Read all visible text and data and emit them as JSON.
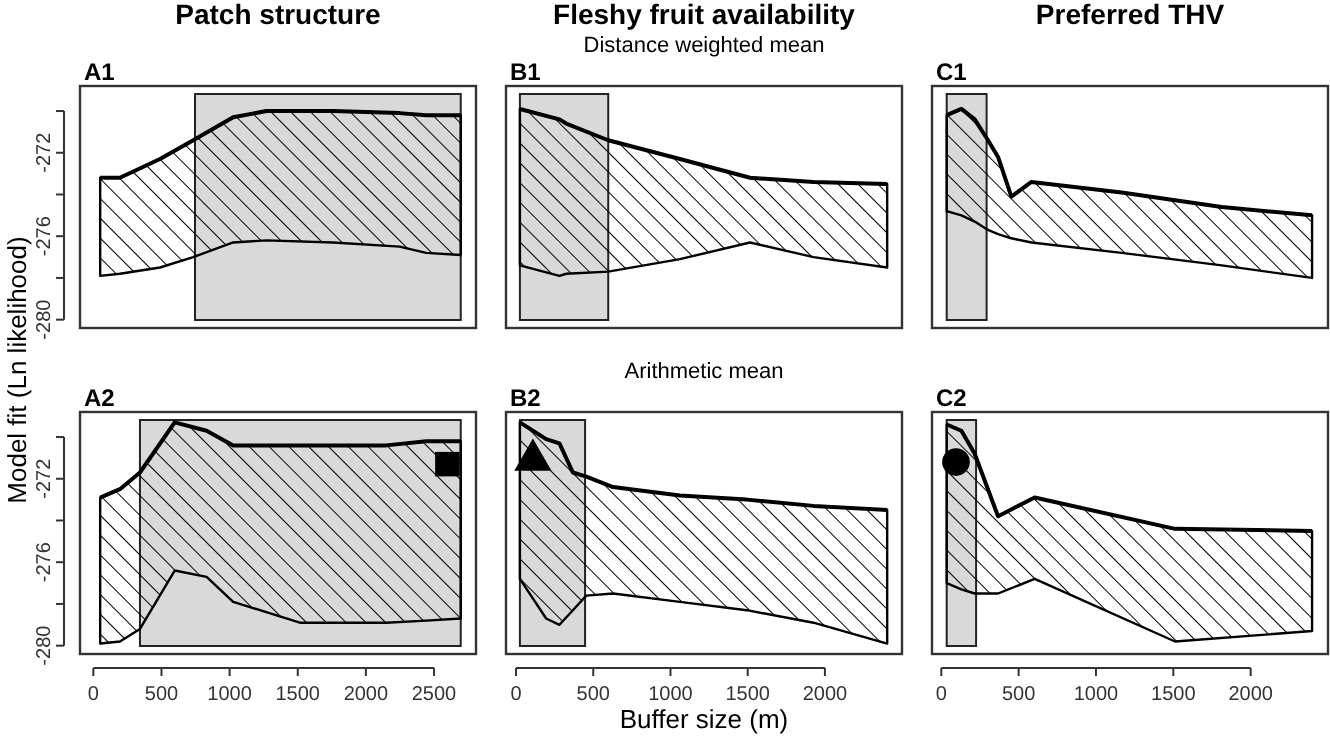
{
  "chart_data": [
    {
      "type": "line",
      "title": "Patch structure",
      "ylabel": "Model fit (Ln likelihood)",
      "annotations": [
        "A1"
      ],
      "xlim": [
        -98,
        2808
      ],
      "ylim": [
        -280.4,
        -268.8
      ],
      "yticks": [
        {
          "value": -270,
          "label": null
        },
        -272,
        {
          "value": -274,
          "label": null
        },
        -276,
        {
          "value": -278,
          "label": null
        },
        -280
      ],
      "tick_labels": "y",
      "bands": [
        {
          "axis": "x",
          "from": 746,
          "to": 2696,
          "color": "#d9d9d9"
        }
      ],
      "series": [
        {
          "color": "#000000",
          "x": [
            50,
            195,
            489,
            733,
            1026,
            1270,
            1759,
            2247,
            2442,
            2696
          ],
          "values": [
            -273.2,
            -273.2,
            -272.3,
            -271.4,
            -270.3,
            -270.0,
            -270.0,
            -270.1,
            -270.2,
            -270.2
          ],
          "upper": [
            -273.2,
            -273.2,
            -272.3,
            -271.4,
            -270.3,
            -270.0,
            -270.0,
            -270.1,
            -270.2,
            -270.2
          ],
          "lower": [
            -277.9,
            -277.8,
            -277.5,
            -277.0,
            -276.3,
            -276.2,
            -276.3,
            -276.5,
            -276.8,
            -276.9
          ]
        }
      ]
    },
    {
      "type": "line",
      "title": "Fleshy fruit availability",
      "subtitle": "Distance weighted mean",
      "annotations": [
        "B1"
      ],
      "xlim": [
        -65,
        2499
      ],
      "ylim": [
        -280.4,
        -268.8
      ],
      "tick_labels": false,
      "bands": [
        {
          "axis": "x",
          "from": 25,
          "to": 597,
          "color": "#d9d9d9"
        }
      ],
      "series": [
        {
          "color": "#000000",
          "x": [
            25,
            281,
            325,
            597,
            1061,
            1515,
            1926,
            2403
          ],
          "values": [
            -269.9,
            -270.4,
            -270.6,
            -271.4,
            -272.3,
            -273.2,
            -273.4,
            -273.5
          ],
          "upper": [
            -269.9,
            -270.4,
            -270.6,
            -271.4,
            -272.3,
            -273.2,
            -273.4,
            -273.5
          ],
          "lower": [
            -277.4,
            -277.9,
            -277.8,
            -277.7,
            -277.1,
            -276.3,
            -277.0,
            -277.5
          ]
        }
      ]
    },
    {
      "type": "line",
      "title": "Preferred THV",
      "annotations": [
        "C1"
      ],
      "xlim": [
        -60,
        2500
      ],
      "ylim": [
        -280.4,
        -268.8
      ],
      "tick_labels": false,
      "bands": [
        {
          "axis": "x",
          "from": 35,
          "to": 293,
          "color": "#d9d9d9"
        }
      ],
      "series": [
        {
          "color": "#000000",
          "x": [
            35,
            130,
            216,
            302,
            367,
            453,
            583,
            1166,
            1813,
            2397
          ],
          "values": [
            -270.2,
            -269.9,
            -270.4,
            -271.4,
            -272.2,
            -274.1,
            -273.4,
            -273.9,
            -274.6,
            -275.0
          ],
          "upper": [
            -270.2,
            -269.9,
            -270.4,
            -271.4,
            -272.2,
            -274.1,
            -273.4,
            -273.9,
            -274.6,
            -275.0
          ],
          "lower": [
            -274.8,
            -275.0,
            -275.3,
            -275.7,
            -275.9,
            -276.1,
            -276.3,
            -276.8,
            -277.4,
            -278.0
          ]
        }
      ]
    },
    {
      "type": "line",
      "annotations": [
        "A2"
      ],
      "xlim": [
        -98,
        2808
      ],
      "ylim": [
        -280.4,
        -268.8
      ],
      "xticks": [
        0,
        500,
        1000,
        1500,
        2000,
        2500
      ],
      "yticks": [
        {
          "value": -270,
          "label": null
        },
        -272,
        {
          "value": -274,
          "label": null
        },
        -276,
        {
          "value": -278,
          "label": null
        },
        -280
      ],
      "bands": [
        {
          "axis": "x",
          "from": 342,
          "to": 2696,
          "color": "#d9d9d9"
        }
      ],
      "series": [
        {
          "color": "#000000",
          "x": [
            50,
            195,
            342,
            597,
            831,
            1026,
            1515,
            2149,
            2442,
            2696
          ],
          "values": [
            -272.9,
            -272.5,
            -271.7,
            -269.3,
            -269.7,
            -270.4,
            -270.4,
            -270.4,
            -270.2,
            -270.2
          ],
          "upper": [
            -272.9,
            -272.5,
            -271.7,
            -269.3,
            -269.7,
            -270.4,
            -270.4,
            -270.4,
            -270.2,
            -270.2
          ],
          "lower": [
            -279.9,
            -279.8,
            -279.2,
            -276.4,
            -276.7,
            -277.9,
            -278.9,
            -278.9,
            -278.8,
            -278.7
          ]
        },
        {
          "type": "scatter",
          "color": "#000000",
          "marker": "square",
          "x": [
            2598
          ],
          "values": [
            -271.3
          ]
        }
      ]
    },
    {
      "type": "line",
      "subtitle": "Arithmetic mean",
      "xlabel": "Buffer size (m)",
      "annotations": [
        "B2"
      ],
      "xlim": [
        -65,
        2499
      ],
      "ylim": [
        -280.4,
        -268.8
      ],
      "xticks": [
        0,
        500,
        1000,
        1500,
        2000
      ],
      "tick_labels": "x",
      "bands": [
        {
          "axis": "x",
          "from": 25,
          "to": 447,
          "color": "#d9d9d9"
        }
      ],
      "series": [
        {
          "color": "#000000",
          "x": [
            25,
            195,
            281,
            368,
            455,
            628,
            1061,
            1494,
            1926,
            2403
          ],
          "values": [
            -269.3,
            -270.1,
            -270.3,
            -271.7,
            -271.9,
            -272.4,
            -272.8,
            -273.0,
            -273.3,
            -273.5
          ],
          "upper": [
            -269.3,
            -270.1,
            -270.3,
            -271.7,
            -271.9,
            -272.4,
            -272.8,
            -273.0,
            -273.3,
            -273.5
          ],
          "lower": [
            -276.8,
            -278.7,
            -279.0,
            -278.3,
            -277.6,
            -277.5,
            -277.9,
            -278.3,
            -278.9,
            -279.9
          ]
        },
        {
          "type": "scatter",
          "color": "#000000",
          "marker": "triangle",
          "x": [
            109
          ],
          "values": [
            -271.1
          ]
        }
      ]
    },
    {
      "type": "line",
      "annotations": [
        "C2"
      ],
      "xlim": [
        -60,
        2500
      ],
      "ylim": [
        -280.4,
        -268.8
      ],
      "xticks": [
        0,
        500,
        1000,
        1500,
        2000
      ],
      "tick_labels": "x",
      "bands": [
        {
          "axis": "x",
          "from": 35,
          "to": 225,
          "color": "#d9d9d9"
        }
      ],
      "series": [
        {
          "color": "#000000",
          "x": [
            35,
            130,
            216,
            367,
            604,
            1511,
            2397
          ],
          "values": [
            -269.4,
            -269.7,
            -270.8,
            -273.8,
            -272.9,
            -274.4,
            -274.5
          ],
          "upper": [
            -269.4,
            -269.7,
            -270.8,
            -273.8,
            -272.9,
            -274.4,
            -274.5
          ],
          "lower": [
            -277.0,
            -277.3,
            -277.5,
            -277.5,
            -276.8,
            -279.8,
            -279.3
          ]
        },
        {
          "type": "scatter",
          "color": "#000000",
          "marker": "circle",
          "x": [
            95
          ],
          "values": [
            -271.2
          ]
        }
      ]
    }
  ]
}
